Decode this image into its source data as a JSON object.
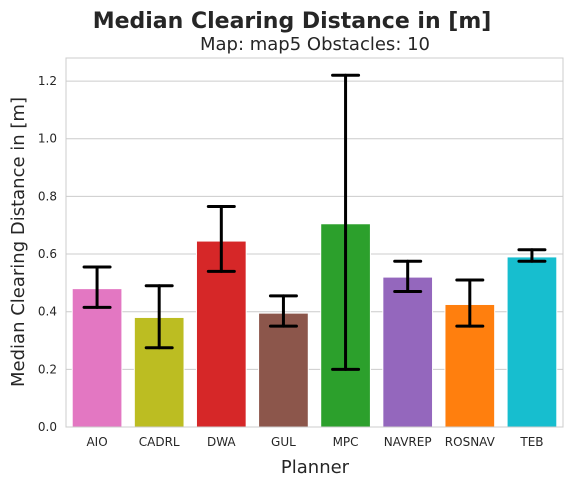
{
  "chart_data": {
    "type": "bar",
    "suptitle": "Median Clearing Distance in [m]",
    "title": "Map: map5 Obstacles: 10",
    "xlabel": "Planner",
    "ylabel": "Median Clearing Distance in [m]",
    "ylim": [
      0,
      1.28
    ],
    "yticks": [
      0.0,
      0.2,
      0.4,
      0.6,
      0.8,
      1.0,
      1.2
    ],
    "ytick_labels": [
      "0.0",
      "0.2",
      "0.4",
      "0.6",
      "0.8",
      "1.0",
      "1.2"
    ],
    "grid": true,
    "categories": [
      "AIO",
      "CADRL",
      "DWA",
      "GUL",
      "MPC",
      "NAVREP",
      "ROSNAV",
      "TEB"
    ],
    "values": [
      0.48,
      0.38,
      0.645,
      0.395,
      0.705,
      0.52,
      0.425,
      0.59
    ],
    "error_low": [
      0.415,
      0.275,
      0.54,
      0.35,
      0.2,
      0.47,
      0.35,
      0.575
    ],
    "error_high": [
      0.555,
      0.49,
      0.765,
      0.455,
      1.22,
      0.575,
      0.51,
      0.615
    ],
    "colors": [
      "#e377c2",
      "#bcbd22",
      "#d62728",
      "#8c564b",
      "#2ca02c",
      "#9467bd",
      "#ff7f0e",
      "#17becf"
    ]
  }
}
